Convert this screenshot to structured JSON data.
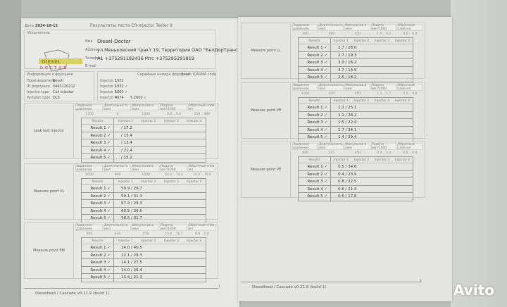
{
  "page1": {
    "date_label": "Дата",
    "date": "2024-10-15",
    "title": "Результаты теста CR-Injector Tester 9",
    "tester_section": "Испытатель",
    "tester": {
      "name_label": "Имя",
      "name": "Diesel-Doctor",
      "address_label": "Address",
      "address": "ул.Меньковский тракт 19, Территория ОАО \"БелДорТранс\"",
      "phone_label": "Телефон",
      "phone": "A1  +375291182436     Mтс  +375295291819",
      "email_label": "E-mail",
      "logo_text": "DIESEL DOCTOR"
    },
    "injector_info": {
      "title": "Информация о форсунке",
      "rows": [
        [
          "Производитель",
          "Bosch"
        ],
        [
          "ID форсунки",
          "0445110212"
        ],
        [
          "Injector type",
          "Coil injector"
        ],
        [
          "Testplan type",
          "DLS"
        ]
      ]
    },
    "serials": {
      "title": "Серийные номера форсунок",
      "code_title": "Bosch IQA/IMA code",
      "rows": [
        [
          "Injector 1",
          "1952",
          ""
        ],
        [
          "Injector 2",
          "1932 ✓",
          ""
        ],
        [
          "Injector 3",
          "1863 ✓",
          ""
        ],
        [
          "Injector 4",
          "4974",
          "5.2600 ✓"
        ]
      ]
    },
    "blocks": [
      {
        "label": "Leak test injector",
        "params": [
          "1700",
          "0",
          "1000",
          "0.0 .. 0.0",
          "150 .. 800"
        ],
        "results": [
          "/ 17.2",
          "/ 15.4",
          "/ 13.4",
          "/ 21.4",
          "/ 15.2"
        ]
      },
      {
        "label": "Measure point VL",
        "params": [
          "1600",
          "800",
          "1000",
          "54.2 .. 70.2",
          "10.0 .. 70.0"
        ],
        "results": [
          "59.9 / 29.7",
          "59.1 / 31.3",
          "57.4 / 29.3",
          "60.5 / 39.5",
          "58.5 / 31.7"
        ]
      },
      {
        "label": "Measure point EM",
        "params": [
          "800",
          "430",
          "450",
          "10.8 .. 16.7",
          "0.0 .. 0.0"
        ],
        "results": [
          "14.0 / 40.5",
          "12.1 / 29.3",
          "14.1 / 27.5",
          "14.0 / 26.4",
          "13.4 / 21.3"
        ]
      }
    ],
    "footer": "Dieselfeed / Cascade v0.21.9 (build 1)",
    "page_number": "1"
  },
  "page2": {
    "blocks": [
      {
        "label": "Measure point LL",
        "params": [
          "300",
          "490",
          "450",
          "1.6 .. 8.2",
          "0.0 .. 0.0"
        ],
        "results": [
          "2.7 / 28.0",
          "2.7 / 19.3",
          "3.0 / 16.2",
          "3.7 / 14.9",
          "2.6 / 18.2"
        ]
      },
      {
        "label": "Measure point VE",
        "params": [
          "1000",
          "240",
          "450",
          "1.1 .. 1.7",
          "0.0 .. 0.0"
        ],
        "results": [
          "1.2 / 25.1",
          "1.1 / 28.2",
          "1.5 / 22.4",
          "1.7 / 34.1",
          "1.4 / 29.4"
        ]
      },
      {
        "label": "Measure point VE",
        "params": [
          "600",
          "315",
          "450",
          "0.3 .. 3.3",
          "0.0 .. 0.0"
        ],
        "results": [
          "0.5 / 34.6",
          "0.4 / 23.9",
          "0.8 / 22.5",
          "0.6 / 21.4",
          "0.5 / 17.8"
        ]
      }
    ],
    "footer": "Dieselfeed / Cascade v0.21.9 (build 1)",
    "page_number": "3"
  },
  "common": {
    "param_headers": [
      "Заданное давление",
      "Длительность имп",
      "Импульсов в мин",
      "Подача мм³/1000",
      "Обратный слив мл"
    ],
    "result_headers": [
      "Results",
      "Injector 1",
      "Injector 2",
      "Injector 3",
      "Injector 4"
    ],
    "result_labels": [
      "Result 1 ✓",
      "Result 2 ✓",
      "Result 3 ✓",
      "Result 4 ✓",
      "Result 5 ✓"
    ]
  },
  "watermark": "Avito"
}
